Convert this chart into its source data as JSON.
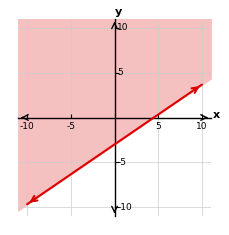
{
  "xlim": [
    -11,
    11
  ],
  "ylim": [
    -11,
    11
  ],
  "xticks": [
    -10,
    -5,
    0,
    5,
    10
  ],
  "yticks": [
    -10,
    -5,
    0,
    5,
    10
  ],
  "slope": 0.66667,
  "intercept": -3,
  "line_color": "#dd0000",
  "shade_color": "#f5c0c0",
  "shade_alpha": 1.0,
  "grid_color": "#cccccc",
  "background_color": "#ffffff",
  "xlabel": "x",
  "ylabel": "y",
  "axis_label_fontsize": 8,
  "tick_fontsize": 6.5,
  "line_x_start": -10,
  "line_x_end": 10
}
